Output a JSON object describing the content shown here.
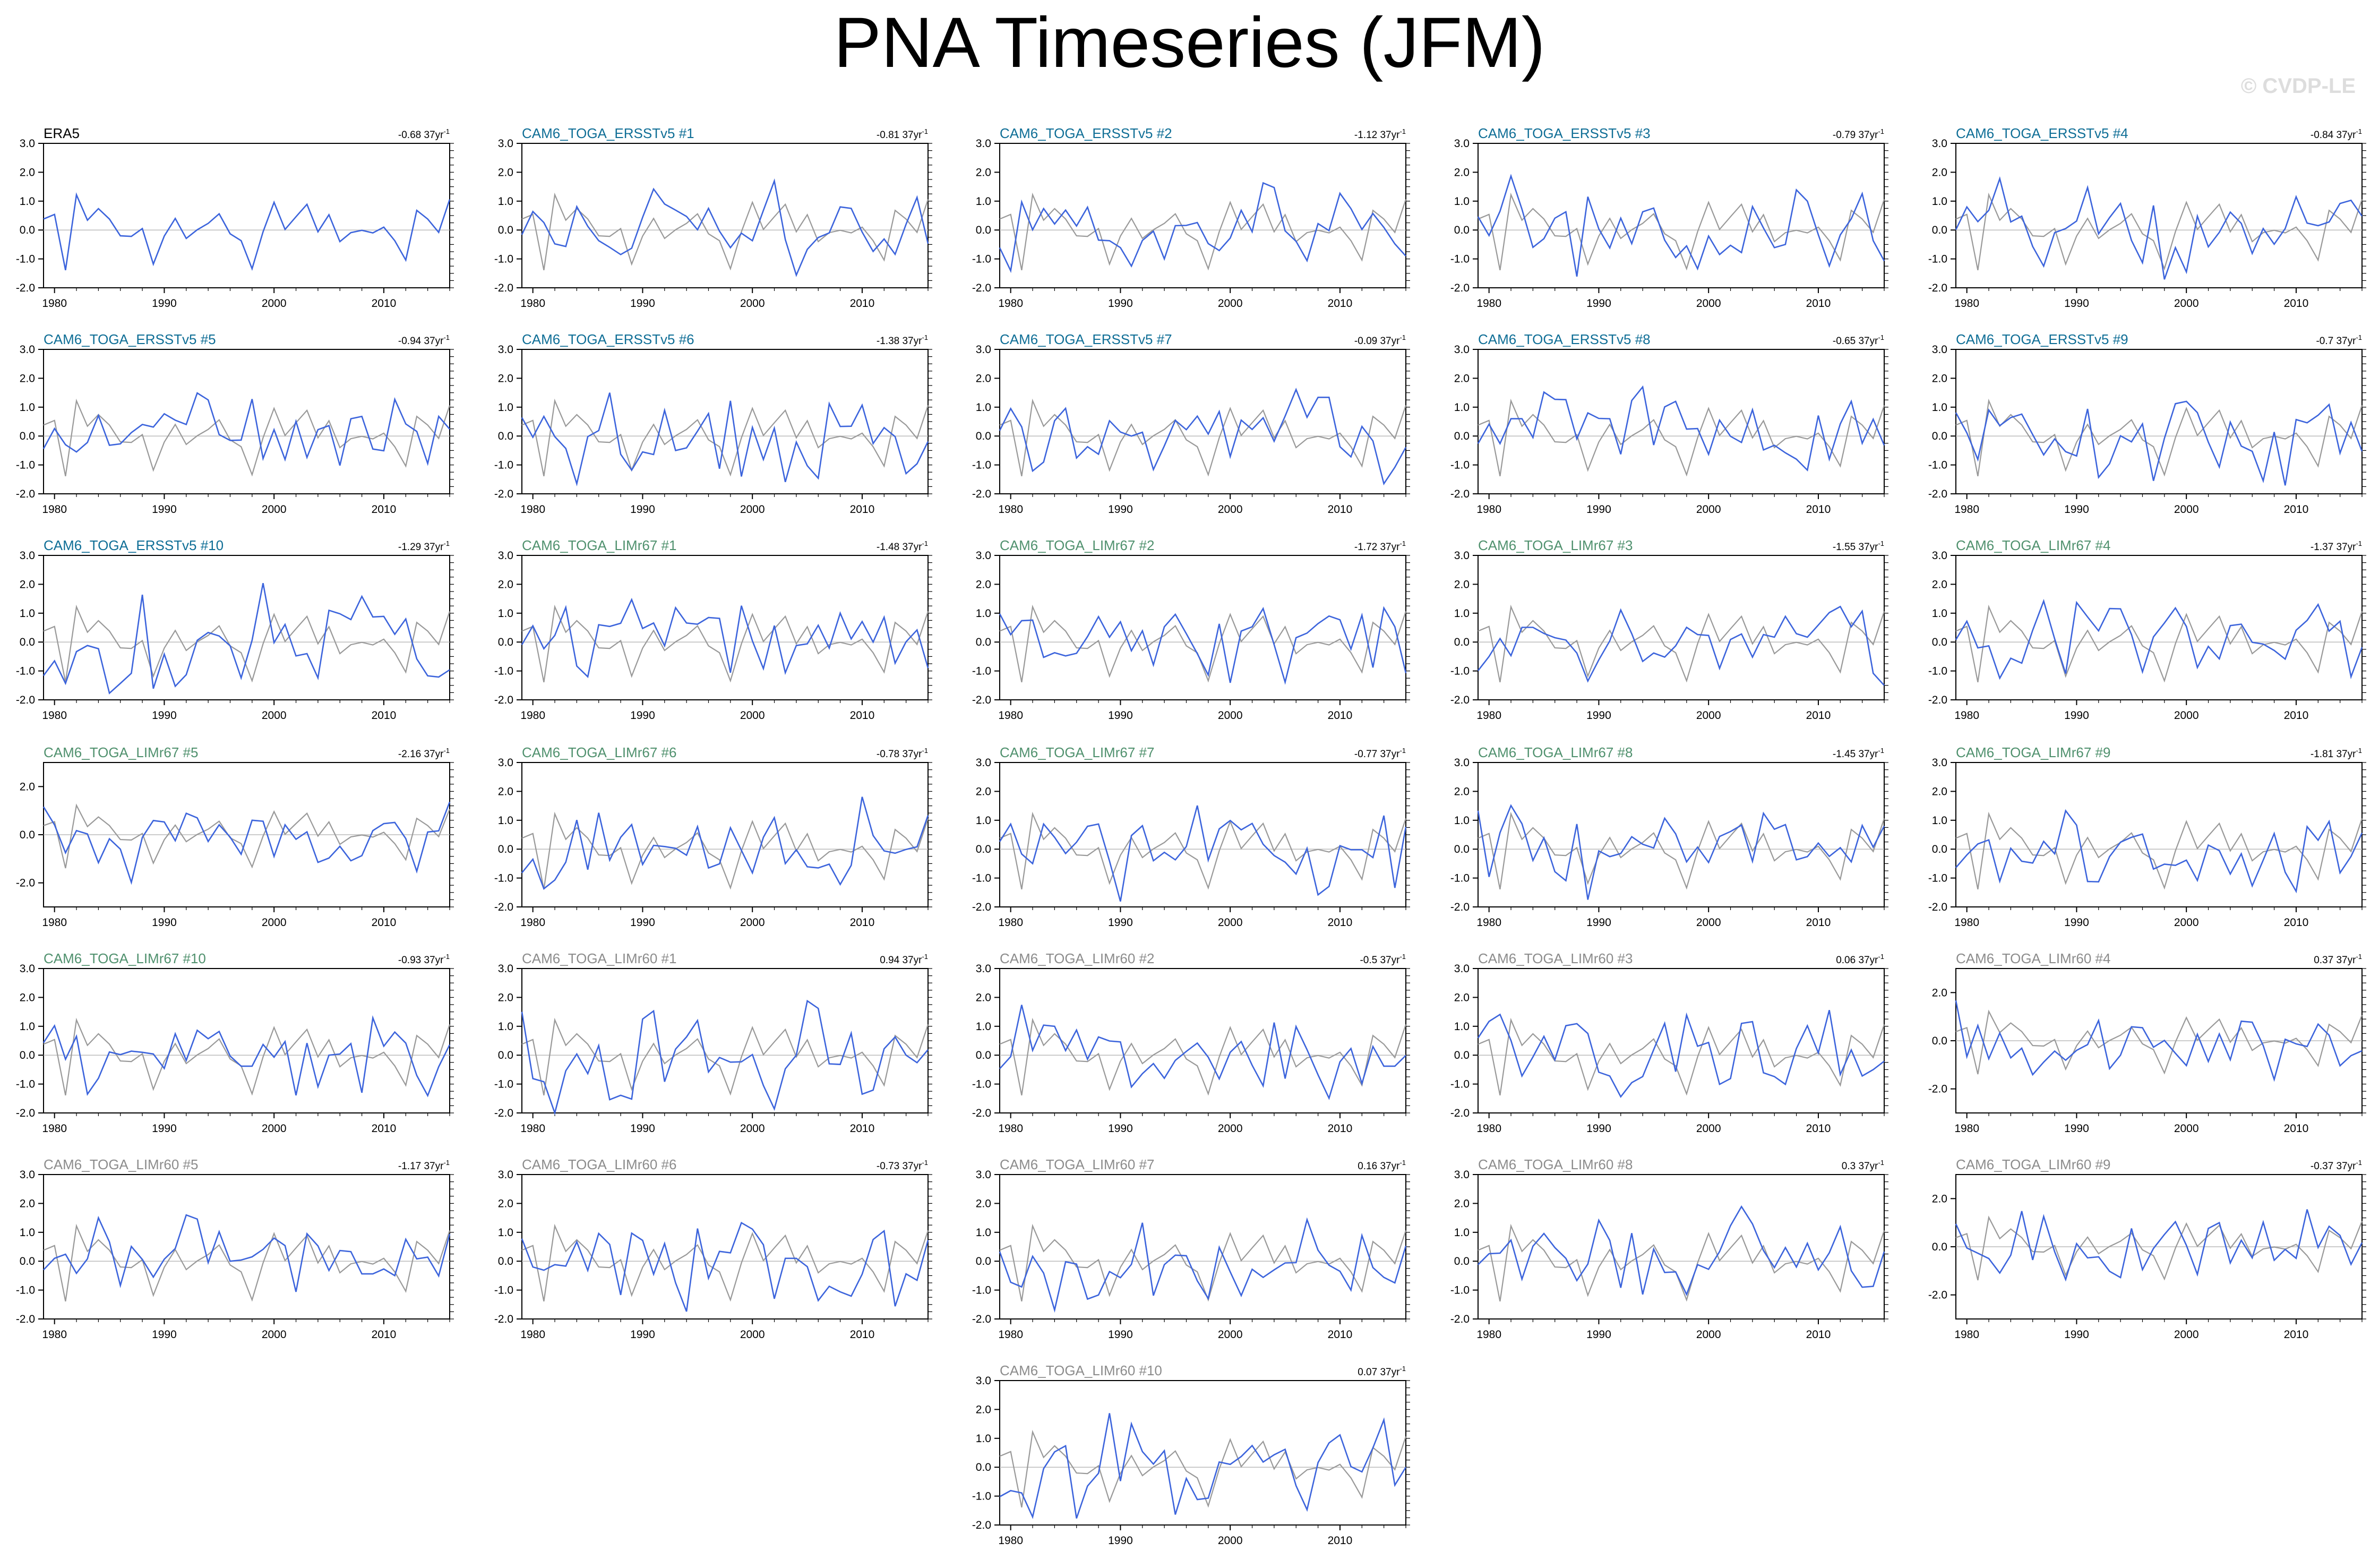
{
  "title": "PNA Timeseries (JFM)",
  "watermark": "© CVDP-LE",
  "colors": {
    "observed": "#999999",
    "model": "#3c64dc",
    "zero_line": "#bbbbbb",
    "title_era5": "#000000",
    "title_ersst": "#0f6e96",
    "title_lim67": "#50916e",
    "title_lim60": "#8c8c8c"
  },
  "chart_data": {
    "type": "line",
    "x_range": [
      1979,
      2016
    ],
    "x_ticks": [
      "1980",
      "1990",
      "2000",
      "2010"
    ],
    "trend_unit": "37yr",
    "trend_exponent": "-1",
    "panels": [
      {
        "name": "ERA5",
        "group": "era5",
        "trend": "-0.68",
        "y_range": [
          -2.0,
          3.0
        ],
        "y_ticks": [
          "3.0",
          "2.0",
          "1.0",
          "0.0",
          "-1.0",
          "-2.0"
        ]
      },
      {
        "name": "CAM6_TOGA_ERSSTv5 #1",
        "group": "ersst",
        "trend": "-0.81",
        "y_range": [
          -2.0,
          3.0
        ],
        "y_ticks": [
          "3.0",
          "2.0",
          "1.0",
          "0.0",
          "-1.0",
          "-2.0"
        ]
      },
      {
        "name": "CAM6_TOGA_ERSSTv5 #2",
        "group": "ersst",
        "trend": "-1.12",
        "y_range": [
          -2.0,
          3.0
        ],
        "y_ticks": [
          "3.0",
          "2.0",
          "1.0",
          "0.0",
          "-1.0",
          "-2.0"
        ]
      },
      {
        "name": "CAM6_TOGA_ERSSTv5 #3",
        "group": "ersst",
        "trend": "-0.79",
        "y_range": [
          -2.0,
          3.0
        ],
        "y_ticks": [
          "3.0",
          "2.0",
          "1.0",
          "0.0",
          "-1.0",
          "-2.0"
        ]
      },
      {
        "name": "CAM6_TOGA_ERSSTv5 #4",
        "group": "ersst",
        "trend": "-0.84",
        "y_range": [
          -2.0,
          3.0
        ],
        "y_ticks": [
          "3.0",
          "2.0",
          "1.0",
          "0.0",
          "-1.0",
          "-2.0"
        ]
      },
      {
        "name": "CAM6_TOGA_ERSSTv5 #5",
        "group": "ersst",
        "trend": "-0.94",
        "y_range": [
          -2.0,
          3.0
        ],
        "y_ticks": [
          "3.0",
          "2.0",
          "1.0",
          "0.0",
          "-1.0",
          "-2.0"
        ]
      },
      {
        "name": "CAM6_TOGA_ERSSTv5 #6",
        "group": "ersst",
        "trend": "-1.38",
        "y_range": [
          -2.0,
          3.0
        ],
        "y_ticks": [
          "3.0",
          "2.0",
          "1.0",
          "0.0",
          "-1.0",
          "-2.0"
        ]
      },
      {
        "name": "CAM6_TOGA_ERSSTv5 #7",
        "group": "ersst",
        "trend": "-0.09",
        "y_range": [
          -2.0,
          3.0
        ],
        "y_ticks": [
          "3.0",
          "2.0",
          "1.0",
          "0.0",
          "-1.0",
          "-2.0"
        ]
      },
      {
        "name": "CAM6_TOGA_ERSSTv5 #8",
        "group": "ersst",
        "trend": "-0.65",
        "y_range": [
          -2.0,
          3.0
        ],
        "y_ticks": [
          "3.0",
          "2.0",
          "1.0",
          "0.0",
          "-1.0",
          "-2.0"
        ]
      },
      {
        "name": "CAM6_TOGA_ERSSTv5 #9",
        "group": "ersst",
        "trend": "-0.7",
        "y_range": [
          -2.0,
          3.0
        ],
        "y_ticks": [
          "3.0",
          "2.0",
          "1.0",
          "0.0",
          "-1.0",
          "-2.0"
        ]
      },
      {
        "name": "CAM6_TOGA_ERSSTv5 #10",
        "group": "ersst",
        "trend": "-1.29",
        "y_range": [
          -2.0,
          3.0
        ],
        "y_ticks": [
          "3.0",
          "2.0",
          "1.0",
          "0.0",
          "-1.0",
          "-2.0"
        ]
      },
      {
        "name": "CAM6_TOGA_LIMr67 #1",
        "group": "lim67",
        "trend": "-1.48",
        "y_range": [
          -2.0,
          3.0
        ],
        "y_ticks": [
          "3.0",
          "2.0",
          "1.0",
          "0.0",
          "-1.0",
          "-2.0"
        ]
      },
      {
        "name": "CAM6_TOGA_LIMr67 #2",
        "group": "lim67",
        "trend": "-1.72",
        "y_range": [
          -2.0,
          3.0
        ],
        "y_ticks": [
          "3.0",
          "2.0",
          "1.0",
          "0.0",
          "-1.0",
          "-2.0"
        ]
      },
      {
        "name": "CAM6_TOGA_LIMr67 #3",
        "group": "lim67",
        "trend": "-1.55",
        "y_range": [
          -2.0,
          3.0
        ],
        "y_ticks": [
          "3.0",
          "2.0",
          "1.0",
          "0.0",
          "-1.0",
          "-2.0"
        ]
      },
      {
        "name": "CAM6_TOGA_LIMr67 #4",
        "group": "lim67",
        "trend": "-1.37",
        "y_range": [
          -2.0,
          3.0
        ],
        "y_ticks": [
          "3.0",
          "2.0",
          "1.0",
          "0.0",
          "-1.0",
          "-2.0"
        ]
      },
      {
        "name": "CAM6_TOGA_LIMr67 #5",
        "group": "lim67",
        "trend": "-2.16",
        "y_range": [
          -3.0,
          3.0
        ],
        "y_ticks": [
          "2.0",
          "0.0",
          "-2.0"
        ]
      },
      {
        "name": "CAM6_TOGA_LIMr67 #6",
        "group": "lim67",
        "trend": "-0.78",
        "y_range": [
          -2.0,
          3.0
        ],
        "y_ticks": [
          "3.0",
          "2.0",
          "1.0",
          "0.0",
          "-1.0",
          "-2.0"
        ]
      },
      {
        "name": "CAM6_TOGA_LIMr67 #7",
        "group": "lim67",
        "trend": "-0.77",
        "y_range": [
          -2.0,
          3.0
        ],
        "y_ticks": [
          "3.0",
          "2.0",
          "1.0",
          "0.0",
          "-1.0",
          "-2.0"
        ]
      },
      {
        "name": "CAM6_TOGA_LIMr67 #8",
        "group": "lim67",
        "trend": "-1.45",
        "y_range": [
          -2.0,
          3.0
        ],
        "y_ticks": [
          "3.0",
          "2.0",
          "1.0",
          "0.0",
          "-1.0",
          "-2.0"
        ]
      },
      {
        "name": "CAM6_TOGA_LIMr67 #9",
        "group": "lim67",
        "trend": "-1.81",
        "y_range": [
          -2.0,
          3.0
        ],
        "y_ticks": [
          "3.0",
          "2.0",
          "1.0",
          "0.0",
          "-1.0",
          "-2.0"
        ]
      },
      {
        "name": "CAM6_TOGA_LIMr67 #10",
        "group": "lim67",
        "trend": "-0.93",
        "y_range": [
          -2.0,
          3.0
        ],
        "y_ticks": [
          "3.0",
          "2.0",
          "1.0",
          "0.0",
          "-1.0",
          "-2.0"
        ]
      },
      {
        "name": "CAM6_TOGA_LIMr60 #1",
        "group": "lim60",
        "trend": "0.94",
        "y_range": [
          -2.0,
          3.0
        ],
        "y_ticks": [
          "3.0",
          "2.0",
          "1.0",
          "0.0",
          "-1.0",
          "-2.0"
        ]
      },
      {
        "name": "CAM6_TOGA_LIMr60 #2",
        "group": "lim60",
        "trend": "-0.5",
        "y_range": [
          -2.0,
          3.0
        ],
        "y_ticks": [
          "3.0",
          "2.0",
          "1.0",
          "0.0",
          "-1.0",
          "-2.0"
        ]
      },
      {
        "name": "CAM6_TOGA_LIMr60 #3",
        "group": "lim60",
        "trend": "0.06",
        "y_range": [
          -2.0,
          3.0
        ],
        "y_ticks": [
          "3.0",
          "2.0",
          "1.0",
          "0.0",
          "-1.0",
          "-2.0"
        ]
      },
      {
        "name": "CAM6_TOGA_LIMr60 #4",
        "group": "lim60",
        "trend": "0.37",
        "y_range": [
          -3.0,
          3.0
        ],
        "y_ticks": [
          "2.0",
          "0.0",
          "-2.0"
        ]
      },
      {
        "name": "CAM6_TOGA_LIMr60 #5",
        "group": "lim60",
        "trend": "-1.17",
        "y_range": [
          -2.0,
          3.0
        ],
        "y_ticks": [
          "3.0",
          "2.0",
          "1.0",
          "0.0",
          "-1.0",
          "-2.0"
        ]
      },
      {
        "name": "CAM6_TOGA_LIMr60 #6",
        "group": "lim60",
        "trend": "-0.73",
        "y_range": [
          -2.0,
          3.0
        ],
        "y_ticks": [
          "3.0",
          "2.0",
          "1.0",
          "0.0",
          "-1.0",
          "-2.0"
        ]
      },
      {
        "name": "CAM6_TOGA_LIMr60 #7",
        "group": "lim60",
        "trend": "0.16",
        "y_range": [
          -2.0,
          3.0
        ],
        "y_ticks": [
          "3.0",
          "2.0",
          "1.0",
          "0.0",
          "-1.0",
          "-2.0"
        ]
      },
      {
        "name": "CAM6_TOGA_LIMr60 #8",
        "group": "lim60",
        "trend": "0.3",
        "y_range": [
          -2.0,
          3.0
        ],
        "y_ticks": [
          "3.0",
          "2.0",
          "1.0",
          "0.0",
          "-1.0",
          "-2.0"
        ]
      },
      {
        "name": "CAM6_TOGA_LIMr60 #9",
        "group": "lim60",
        "trend": "-0.37",
        "y_range": [
          -3.0,
          3.0
        ],
        "y_ticks": [
          "2.0",
          "0.0",
          "-2.0"
        ]
      },
      {
        "name": "CAM6_TOGA_LIMr60 #10",
        "group": "lim60",
        "trend": "0.07",
        "y_range": [
          -2.0,
          3.0
        ],
        "y_ticks": [
          "3.0",
          "2.0",
          "1.0",
          "0.0",
          "-1.0",
          "-2.0"
        ]
      }
    ]
  }
}
